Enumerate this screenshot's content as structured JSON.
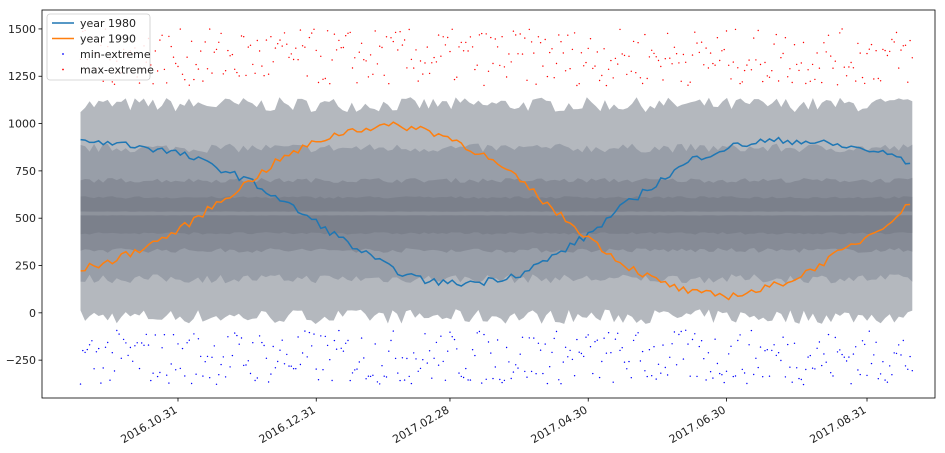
{
  "chart_data": {
    "type": "line",
    "title": "",
    "xlabel": "",
    "ylabel": "",
    "x_range": [
      "2016-09-01",
      "2017-09-30"
    ],
    "ylim": [
      -450,
      1600
    ],
    "y_ticks": [
      -250,
      0,
      250,
      500,
      750,
      1000,
      1250,
      1500
    ],
    "x_ticks": [
      {
        "date": "2016-10-31",
        "label": "2016.10.31"
      },
      {
        "date": "2016-12-31",
        "label": "2016.12.31"
      },
      {
        "date": "2017-02-28",
        "label": "2017.02.28"
      },
      {
        "date": "2017-04-30",
        "label": "2017.04.30"
      },
      {
        "date": "2017-06-30",
        "label": "2017.06.30"
      },
      {
        "date": "2017-08-31",
        "label": "2017.08.31"
      }
    ],
    "legend_position": "top-left",
    "grid": false,
    "series": [
      {
        "name": "year 1980",
        "kind": "line",
        "color": "#1f77b4",
        "points": [
          [
            "2016-09-18",
            905
          ],
          [
            "2016-10-01",
            900
          ],
          [
            "2016-10-15",
            880
          ],
          [
            "2016-11-01",
            840
          ],
          [
            "2016-11-15",
            780
          ],
          [
            "2016-12-01",
            700
          ],
          [
            "2016-12-15",
            600
          ],
          [
            "2017-01-01",
            470
          ],
          [
            "2017-01-15",
            360
          ],
          [
            "2017-02-01",
            240
          ],
          [
            "2017-02-15",
            175
          ],
          [
            "2017-03-01",
            155
          ],
          [
            "2017-03-15",
            165
          ],
          [
            "2017-04-01",
            210
          ],
          [
            "2017-04-15",
            300
          ],
          [
            "2017-05-01",
            420
          ],
          [
            "2017-05-15",
            560
          ],
          [
            "2017-06-01",
            700
          ],
          [
            "2017-06-15",
            810
          ],
          [
            "2017-07-01",
            875
          ],
          [
            "2017-07-15",
            905
          ],
          [
            "2017-08-01",
            910
          ],
          [
            "2017-08-15",
            890
          ],
          [
            "2017-09-01",
            860
          ],
          [
            "2017-09-15",
            820
          ],
          [
            "2017-09-20",
            760
          ]
        ]
      },
      {
        "name": "year 1990",
        "kind": "line",
        "color": "#ff7f0e",
        "points": [
          [
            "2016-09-18",
            230
          ],
          [
            "2016-10-01",
            270
          ],
          [
            "2016-10-15",
            340
          ],
          [
            "2016-11-01",
            440
          ],
          [
            "2016-11-15",
            560
          ],
          [
            "2016-12-01",
            690
          ],
          [
            "2016-12-15",
            810
          ],
          [
            "2017-01-01",
            910
          ],
          [
            "2017-01-15",
            965
          ],
          [
            "2017-02-01",
            990
          ],
          [
            "2017-02-15",
            975
          ],
          [
            "2017-03-01",
            920
          ],
          [
            "2017-03-15",
            830
          ],
          [
            "2017-04-01",
            690
          ],
          [
            "2017-04-15",
            540
          ],
          [
            "2017-05-01",
            390
          ],
          [
            "2017-05-15",
            260
          ],
          [
            "2017-06-01",
            160
          ],
          [
            "2017-06-15",
            105
          ],
          [
            "2017-07-01",
            90
          ],
          [
            "2017-07-15",
            120
          ],
          [
            "2017-08-01",
            190
          ],
          [
            "2017-08-15",
            290
          ],
          [
            "2017-09-01",
            410
          ],
          [
            "2017-09-15",
            530
          ],
          [
            "2017-09-20",
            590
          ]
        ]
      },
      {
        "name": "min-extreme",
        "kind": "scatter",
        "color": "#0000ff",
        "y_range": [
          -380,
          -90
        ]
      },
      {
        "name": "max-extreme",
        "kind": "scatter",
        "color": "#ff0000",
        "y_range": [
          1200,
          1500
        ]
      }
    ],
    "bands": [
      {
        "lower": -20,
        "upper": 1100,
        "color": "#b0b4bb"
      },
      {
        "lower": 180,
        "upper": 870,
        "color": "#979ca6"
      },
      {
        "lower": 330,
        "upper": 700,
        "color": "#858a95"
      },
      {
        "lower": 420,
        "upper": 610,
        "color": "#7a7f8a"
      },
      {
        "lower": 515,
        "upper": 535,
        "color": "#8f949d"
      }
    ],
    "band_span": [
      "2016-09-18",
      "2017-09-20"
    ]
  }
}
